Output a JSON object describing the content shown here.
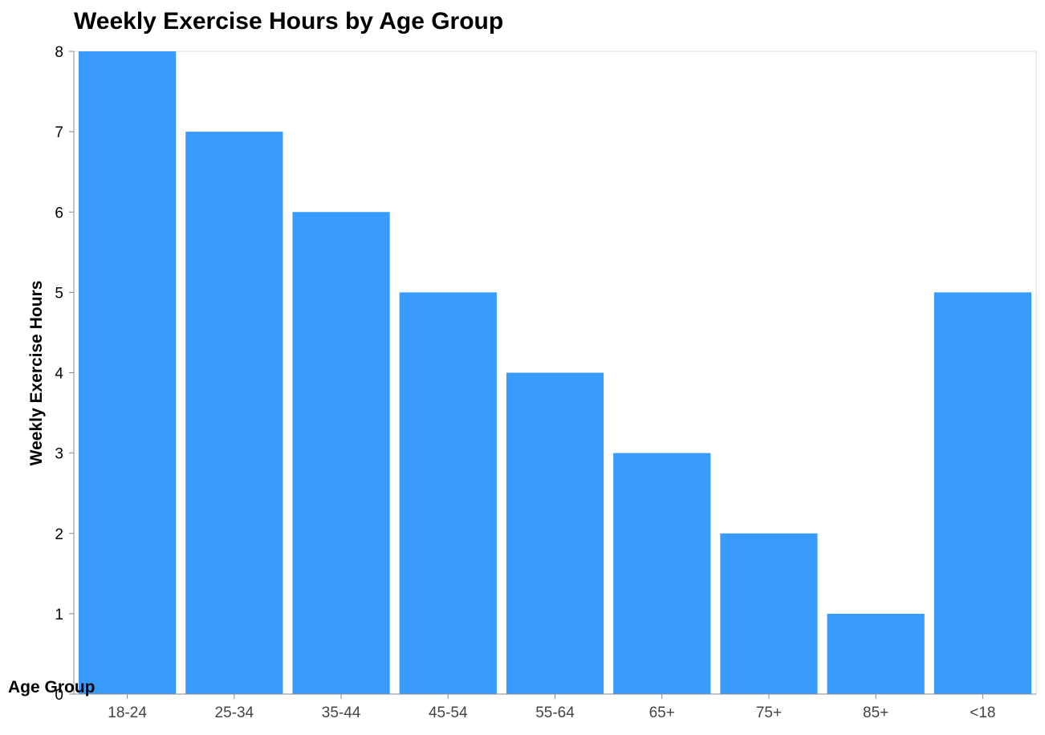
{
  "chart_data": {
    "type": "bar",
    "title": "Weekly Exercise Hours by Age Group",
    "xlabel": "Age Group",
    "ylabel": "Weekly Exercise Hours",
    "categories": [
      "18-24",
      "25-34",
      "35-44",
      "45-54",
      "55-64",
      "65+",
      "75+",
      "85+",
      "<18"
    ],
    "values": [
      8,
      7,
      6,
      5,
      4,
      3,
      2,
      1,
      5
    ],
    "ylim": [
      0,
      8
    ],
    "yticks": [
      0,
      1,
      2,
      3,
      4,
      5,
      6,
      7,
      8
    ],
    "grid": false,
    "legend": "none",
    "bar_color": "#3a9bff",
    "axis_color": "#888888",
    "frame_color": "#dddddd"
  }
}
